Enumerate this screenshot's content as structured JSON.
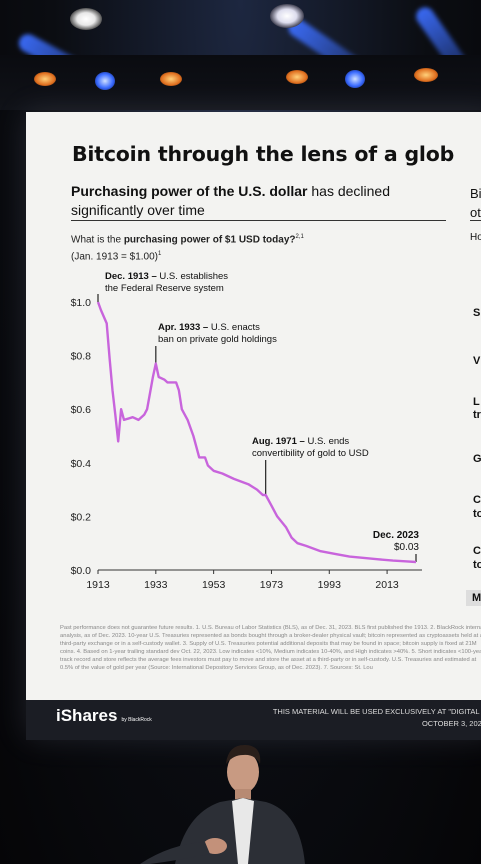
{
  "slide": {
    "title": "Bitcoin through the lens of a glob",
    "left_panel": {
      "subtitle_bold": "Purchasing power of the U.S. dollar",
      "subtitle_rest": " has declined significantly over time",
      "question_pre": "What is the ",
      "question_bold": "purchasing power of $1 USD today?",
      "question_sup": "2,1",
      "question_line2": "(Jan. 1913 = $1.00)",
      "question_line2_sup": "1"
    },
    "right_panel_fragments": [
      "Bi",
      "ot",
      "Ho",
      "S",
      "V",
      "L",
      "tr",
      "G",
      "C",
      "to",
      "C",
      "to",
      "M"
    ],
    "annotations": {
      "a1913_title": "Dec. 1913 – ",
      "a1913_rest": "U.S. establishes",
      "a1913_line2": "the Federal Reserve system",
      "a1933_title": "Apr. 1933 – ",
      "a1933_rest": "U.S. enacts",
      "a1933_line2": "ban on private gold holdings",
      "a1971_title": "Aug. 1971 – ",
      "a1971_rest": "U.S. ends",
      "a1971_line2": "convertibility of gold to USD",
      "a2023_title": "Dec. 2023",
      "a2023_value": "$0.03"
    },
    "footnote": "Past performance does not guarantee future results. 1. U.S. Bureau of Labor Statistics (BLS), as of Dec. 31, 2023. BLS first published the 1913. 2. BlackRock internal analysis, as of Dec. 2023. 10-year U.S. Treasuries represented as bonds bought through a broker-dealer physical vault; bitcoin represented as cryptoassets held at a third-party exchange or in a self-custody wallet. 3. Supply of U.S. Treasuries potential additional deposits that may be found in space; bitcoin supply is fixed at 21M coins. 4. Based on 1-year trailing standard dev Oct. 22, 2023. Low indicates <10%, Medium indicates 10-40%, and High indicates >40%. 5. Short indicates <100-year track record and store reflects the average fees investors must pay to move and store the asset at a third-party or in self-custody. U.S. Treasuries and estimated at 0.5% of the value of gold per year (Source: International Depository Services Group, as of Dec. 2023). 7. Sources: St. Lou",
    "footer": {
      "logo": "iShares",
      "logo_sub": "by BlackRock",
      "disclaimer_line1": "THIS MATERIAL WILL BE USED EXCLUSIVELY AT \"DIGITAL A",
      "disclaimer_line2": "OCTOBER 3, 2024"
    }
  },
  "chart_data": {
    "type": "line",
    "title": "",
    "xlabel": "",
    "ylabel": "",
    "x_ticks": [
      "1913",
      "1933",
      "1953",
      "1973",
      "1993",
      "2013"
    ],
    "y_ticks": [
      "$0.0",
      "$0.2",
      "$0.4",
      "$0.6",
      "$0.8",
      "$1.0"
    ],
    "xlim": [
      1913,
      2023
    ],
    "ylim": [
      0,
      1.0
    ],
    "grid": false,
    "line_color": "#c864dc",
    "series": [
      {
        "x": [
          1913,
          1914,
          1916,
          1917,
          1918,
          1919,
          1920,
          1921,
          1922,
          1925,
          1927,
          1929,
          1930,
          1931,
          1932,
          1933,
          1934,
          1936,
          1937,
          1938,
          1940,
          1941,
          1942,
          1944,
          1946,
          1947,
          1948,
          1950,
          1951,
          1953,
          1956,
          1960,
          1965,
          1968,
          1970,
          1971,
          1973,
          1975,
          1978,
          1980,
          1982,
          1985,
          1990,
          1995,
          2000,
          2005,
          2010,
          2015,
          2020,
          2023
        ],
        "y": [
          1.0,
          0.97,
          0.92,
          0.79,
          0.67,
          0.58,
          0.48,
          0.6,
          0.56,
          0.57,
          0.56,
          0.58,
          0.6,
          0.66,
          0.72,
          0.77,
          0.72,
          0.71,
          0.7,
          0.7,
          0.7,
          0.67,
          0.6,
          0.56,
          0.5,
          0.46,
          0.42,
          0.42,
          0.39,
          0.37,
          0.36,
          0.34,
          0.32,
          0.3,
          0.28,
          0.28,
          0.24,
          0.2,
          0.16,
          0.12,
          0.1,
          0.09,
          0.07,
          0.06,
          0.05,
          0.045,
          0.04,
          0.035,
          0.032,
          0.03
        ]
      }
    ]
  }
}
